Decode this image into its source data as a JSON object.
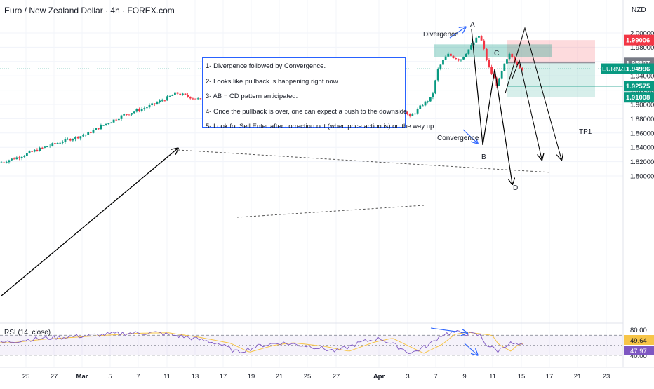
{
  "header": {
    "title": "Euro / New Zealand Dollar · 4h · FOREX.com",
    "currency": "NZD"
  },
  "chart_data": {
    "type": "candlestick",
    "symbol": "EURNZD",
    "timeframe": "4h",
    "y_range": [
      1.79,
      2.01
    ],
    "price_ticks": [
      "2.00000",
      "1.98000",
      "1.96000",
      "1.94000",
      "1.92000",
      "1.90000",
      "1.88000",
      "1.86000",
      "1.84000",
      "1.82000",
      "1.80000"
    ],
    "x_ticks": [
      "25",
      "27",
      "Mar",
      "5",
      "7",
      "11",
      "13",
      "17",
      "19",
      "21",
      "25",
      "27",
      "Apr",
      "3",
      "7",
      "9",
      "11",
      "15",
      "17",
      "21",
      "23"
    ],
    "price_path": [
      [
        0,
        1.818
      ],
      [
        0.03,
        1.826
      ],
      [
        0.06,
        1.836
      ],
      [
        0.1,
        1.848
      ],
      [
        0.14,
        1.858
      ],
      [
        0.17,
        1.872
      ],
      [
        0.2,
        1.885
      ],
      [
        0.24,
        1.897
      ],
      [
        0.27,
        1.909
      ],
      [
        0.285,
        1.916
      ],
      [
        0.3,
        1.912
      ],
      [
        0.33,
        1.905
      ],
      [
        0.37,
        1.892
      ],
      [
        0.39,
        1.876
      ],
      [
        0.41,
        1.876
      ],
      [
        0.44,
        1.886
      ],
      [
        0.47,
        1.889
      ],
      [
        0.5,
        1.886
      ],
      [
        0.53,
        1.878
      ],
      [
        0.56,
        1.88
      ],
      [
        0.6,
        1.897
      ],
      [
        0.62,
        1.909
      ],
      [
        0.645,
        1.898
      ],
      [
        0.66,
        1.882
      ],
      [
        0.68,
        1.9
      ],
      [
        0.695,
        1.91
      ],
      [
        0.705,
        1.95
      ],
      [
        0.72,
        1.97
      ],
      [
        0.74,
        1.962
      ],
      [
        0.755,
        1.978
      ],
      [
        0.77,
        1.996
      ],
      [
        0.775,
        1.988
      ],
      [
        0.785,
        1.955
      ],
      [
        0.8,
        1.926
      ],
      [
        0.81,
        1.953
      ],
      [
        0.82,
        1.97
      ],
      [
        0.83,
        1.958
      ],
      [
        0.84,
        1.95
      ]
    ],
    "last_price": "1.94996",
    "symbol_label": "EURNZD",
    "price_labels": [
      {
        "value": "1.99006",
        "color": "#f23645"
      },
      {
        "value": "1.95807",
        "color": "#787b86"
      },
      {
        "value": "1.94996",
        "color": "#089981"
      },
      {
        "value": "1.92575",
        "color": "#089981"
      },
      {
        "value": "1.91008",
        "color": "#089981"
      }
    ],
    "annotations": {
      "divergence": "Divergence",
      "convergence": "Convergence",
      "tp1": "TP1",
      "points": [
        "A",
        "B",
        "C",
        "D"
      ]
    },
    "notes": [
      "1- Divergence followed by Convergence.",
      "2- Looks like pullback is happening right now.",
      "3- AB = CD pattern anticipated.",
      "4- Once the pullback is over, one can expect a push to the downside.",
      "5- Look for Sell Enter after correction not (when price action is) on the way up."
    ],
    "rsi": {
      "label": "RSI (14, close)",
      "ticks": [
        "80.00",
        "40.00"
      ],
      "value": "47.97",
      "ma_value": "49.64",
      "line_color": "#7e57c2",
      "ma_color": "#f7c548",
      "path": [
        [
          0,
          55
        ],
        [
          0.05,
          62
        ],
        [
          0.1,
          66
        ],
        [
          0.15,
          70
        ],
        [
          0.2,
          74
        ],
        [
          0.25,
          75
        ],
        [
          0.3,
          66
        ],
        [
          0.35,
          54
        ],
        [
          0.38,
          36
        ],
        [
          0.42,
          50
        ],
        [
          0.45,
          55
        ],
        [
          0.5,
          48
        ],
        [
          0.54,
          38
        ],
        [
          0.58,
          56
        ],
        [
          0.61,
          64
        ],
        [
          0.64,
          46
        ],
        [
          0.66,
          34
        ],
        [
          0.69,
          52
        ],
        [
          0.71,
          72
        ],
        [
          0.73,
          76
        ],
        [
          0.75,
          73
        ],
        [
          0.77,
          70
        ],
        [
          0.78,
          52
        ],
        [
          0.8,
          38
        ],
        [
          0.81,
          50
        ],
        [
          0.82,
          54
        ],
        [
          0.84,
          48
        ]
      ]
    },
    "colors": {
      "up": "#089981",
      "down": "#f23645"
    }
  }
}
